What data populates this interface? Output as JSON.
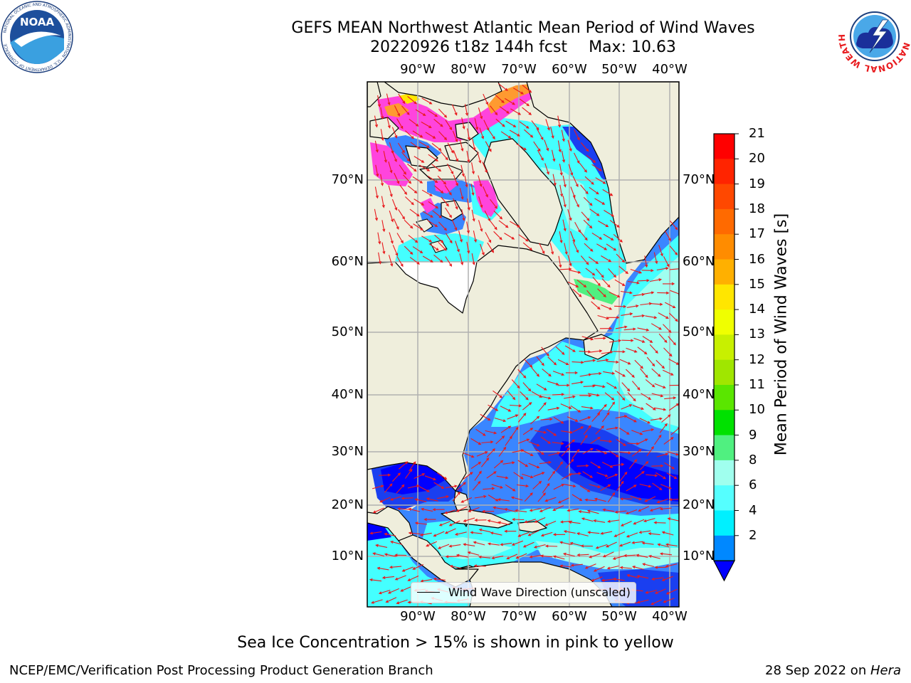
{
  "header": {
    "title": "GEFS MEAN Northwest Atlantic Mean Period of Wind Waves",
    "run": "20220926 t18z 144h fcst",
    "max": "Max: 10.63"
  },
  "logos": {
    "left": {
      "name": "noaa-logo",
      "text": "NOAA",
      "ring": "NATIONAL OCEANIC AND ATMOSPHERIC ADMINISTRATION · U.S. DEPARTMENT OF COMMERCE"
    },
    "right": {
      "name": "nws-logo",
      "ring": "NATIONAL WEATHER SERVICE"
    }
  },
  "map": {
    "lon_labels": [
      "90°W",
      "80°W",
      "70°W",
      "60°W",
      "50°W",
      "40°W"
    ],
    "lat_labels": [
      "70°N",
      "60°N",
      "50°N",
      "40°N",
      "30°N",
      "20°N",
      "10°N"
    ],
    "colors": {
      "land": "#efeedc",
      "grid": "#b0b0b0",
      "arrow": "#e8191c",
      "ice_pink": "#ff44dd",
      "ice_orange": "#ff9a30",
      "unmasked": "#ffffff"
    },
    "legend": "Wind Wave Direction (unscaled)"
  },
  "colorbar": {
    "label": "Mean Period of Wind Waves [s]",
    "ticks": [
      "21",
      "20",
      "19",
      "18",
      "17",
      "16",
      "15",
      "14",
      "13",
      "12",
      "11",
      "10",
      "9",
      "8",
      "6",
      "4",
      "2"
    ],
    "colors": [
      "#ff0000",
      "#ff2400",
      "#ff4800",
      "#ff6a00",
      "#ff8c00",
      "#ffb000",
      "#ffe600",
      "#f0ff00",
      "#c8f000",
      "#a0e600",
      "#5ae600",
      "#00e100",
      "#50f080",
      "#a0ffee",
      "#55ffff",
      "#00f0ff",
      "#0088ff"
    ],
    "extend_color": "#0000ff"
  },
  "note": "Sea Ice Concentration > 15% is shown in pink to yellow",
  "footer": {
    "left": "NCEP/EMC/Verification Post Processing Product Generation Branch",
    "date": "28 Sep 2022 on ",
    "host": "Hera"
  }
}
